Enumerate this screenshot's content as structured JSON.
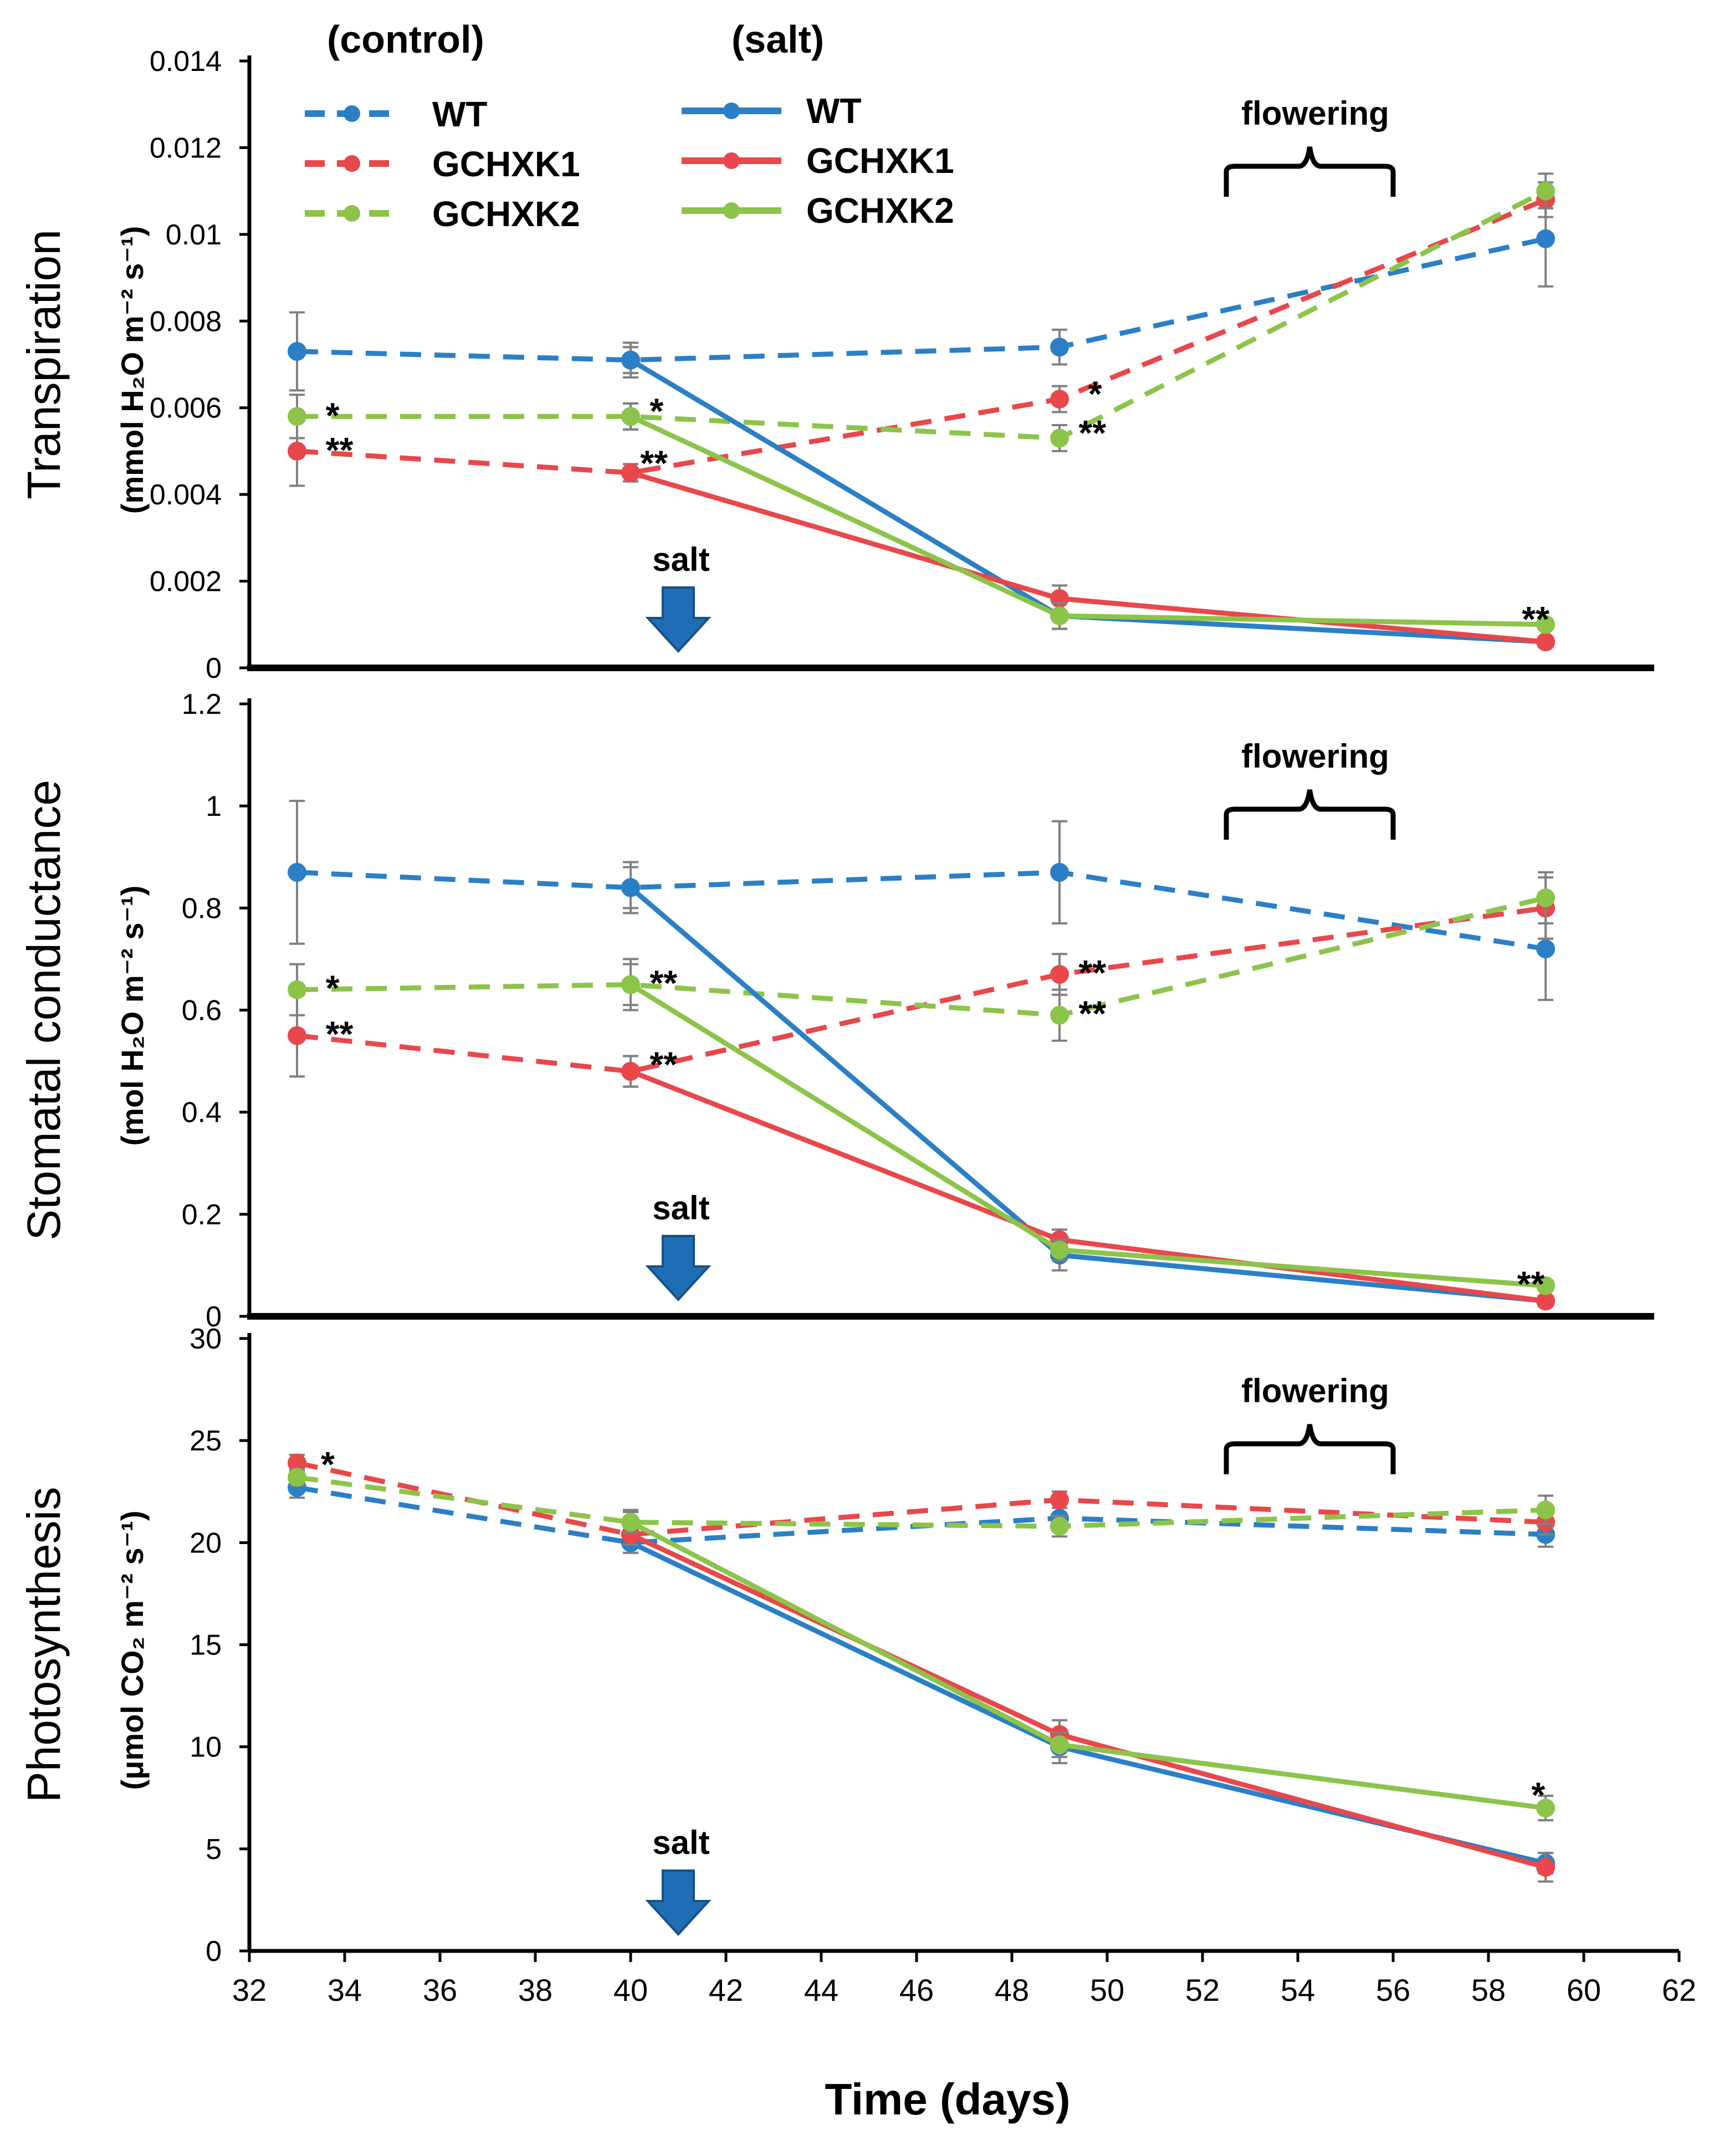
{
  "x_axis": {
    "label": "Time (days)",
    "min": 32,
    "max": 62,
    "ticks": [
      "32",
      "34",
      "36",
      "38",
      "40",
      "42",
      "44",
      "46",
      "48",
      "50",
      "52",
      "54",
      "56",
      "58",
      "60",
      "62"
    ]
  },
  "colors": {
    "WT": "#2b7fc6",
    "GCHXK1": "#e8474b",
    "GCHXK2": "#8cc44a",
    "arrow": "#1f6db4",
    "error": "#808080"
  },
  "legend": {
    "control_heading": "(control)",
    "salt_heading": "(salt)",
    "control": [
      "WT",
      "GCHXK1",
      "GCHXK2"
    ],
    "salt": [
      "WT",
      "GCHXK1",
      "GCHXK2"
    ]
  },
  "annotations": {
    "salt_marker": "salt",
    "flowering": "flowering",
    "salt_day": 41,
    "flowering_days": [
      52.5,
      56
    ]
  },
  "chart_data": [
    {
      "type": "line",
      "title": "Transpiration",
      "ylabel": "Transpiration",
      "ylabel_units": "(mmol H₂O m⁻² s⁻¹)",
      "ylim": [
        0,
        0.014
      ],
      "yticks": [
        "0",
        "0.002",
        "0.004",
        "0.006",
        "0.008",
        "0.01",
        "0.012",
        "0.014"
      ],
      "series": [
        {
          "name": "WT",
          "group": "control",
          "x": [
            33,
            40,
            49,
            59.2
          ],
          "values": [
            0.0073,
            0.0071,
            0.0074,
            0.0099
          ],
          "err": [
            0.0009,
            0.0004,
            0.0004,
            0.0011
          ]
        },
        {
          "name": "GCHXK1",
          "group": "control",
          "x": [
            33,
            40,
            49,
            59.2
          ],
          "values": [
            0.005,
            0.0045,
            0.0062,
            0.0108
          ],
          "err": [
            0.0008,
            0.0002,
            0.0003,
            0.0004
          ]
        },
        {
          "name": "GCHXK2",
          "group": "control",
          "x": [
            33,
            40,
            49,
            59.2
          ],
          "values": [
            0.0058,
            0.0058,
            0.0053,
            0.011
          ],
          "err": [
            0.0005,
            0.0003,
            0.0003,
            0.0004
          ]
        },
        {
          "name": "WT",
          "group": "salt",
          "x": [
            40,
            49,
            59.2
          ],
          "values": [
            0.0071,
            0.0012,
            0.0006
          ],
          "err": [
            0.0003,
            0.0003,
            0.0001
          ]
        },
        {
          "name": "GCHXK1",
          "group": "salt",
          "x": [
            40,
            49,
            59.2
          ],
          "values": [
            0.0045,
            0.0016,
            0.0006
          ],
          "err": [
            0.0002,
            0.0003,
            0.0001
          ]
        },
        {
          "name": "GCHXK2",
          "group": "salt",
          "x": [
            40,
            49,
            59.2
          ],
          "values": [
            0.0058,
            0.0012,
            0.001
          ],
          "err": [
            0.0003,
            0.0003,
            0.0001
          ]
        }
      ],
      "significance": [
        {
          "label": "*",
          "x": 33.6,
          "y": 0.0059
        },
        {
          "label": "**",
          "x": 33.6,
          "y": 0.0051
        },
        {
          "label": "*",
          "x": 40.4,
          "y": 0.006
        },
        {
          "label": "**",
          "x": 40.2,
          "y": 0.0048
        },
        {
          "label": "*",
          "x": 49.6,
          "y": 0.0064
        },
        {
          "label": "**",
          "x": 49.4,
          "y": 0.0055
        },
        {
          "label": "**",
          "x": 58.7,
          "y": 0.0012
        }
      ]
    },
    {
      "type": "line",
      "title": "Stomatal conductance",
      "ylabel": "Stomatal conductance",
      "ylabel_units": "(mol H₂O m⁻² s⁻¹)",
      "ylim": [
        0,
        1.2
      ],
      "yticks": [
        "0",
        "0.2",
        "0.4",
        "0.6",
        "0.8",
        "1",
        "1.2"
      ],
      "series": [
        {
          "name": "WT",
          "group": "control",
          "x": [
            33,
            40,
            49,
            59.2
          ],
          "values": [
            0.87,
            0.84,
            0.87,
            0.72
          ],
          "err": [
            0.14,
            0.05,
            0.1,
            0.1
          ]
        },
        {
          "name": "GCHXK1",
          "group": "control",
          "x": [
            33,
            40,
            49,
            59.2
          ],
          "values": [
            0.55,
            0.48,
            0.67,
            0.8
          ],
          "err": [
            0.08,
            0.03,
            0.04,
            0.06
          ]
        },
        {
          "name": "GCHXK2",
          "group": "control",
          "x": [
            33,
            40,
            49,
            59.2
          ],
          "values": [
            0.64,
            0.65,
            0.59,
            0.82
          ],
          "err": [
            0.05,
            0.05,
            0.05,
            0.05
          ]
        },
        {
          "name": "WT",
          "group": "salt",
          "x": [
            40,
            49,
            59.2
          ],
          "values": [
            0.84,
            0.12,
            0.03
          ],
          "err": [
            0.04,
            0.03,
            0.01
          ]
        },
        {
          "name": "GCHXK1",
          "group": "salt",
          "x": [
            40,
            49,
            59.2
          ],
          "values": [
            0.48,
            0.15,
            0.03
          ],
          "err": [
            0.03,
            0.02,
            0.01
          ]
        },
        {
          "name": "GCHXK2",
          "group": "salt",
          "x": [
            40,
            49,
            59.2
          ],
          "values": [
            0.65,
            0.13,
            0.06
          ],
          "err": [
            0.04,
            0.02,
            0.01
          ]
        }
      ],
      "significance": [
        {
          "label": "*",
          "x": 33.6,
          "y": 0.65
        },
        {
          "label": "**",
          "x": 33.6,
          "y": 0.56
        },
        {
          "label": "**",
          "x": 40.4,
          "y": 0.66
        },
        {
          "label": "**",
          "x": 40.4,
          "y": 0.5
        },
        {
          "label": "**",
          "x": 49.4,
          "y": 0.68
        },
        {
          "label": "**",
          "x": 49.4,
          "y": 0.6
        },
        {
          "label": "**",
          "x": 58.6,
          "y": 0.07
        }
      ]
    },
    {
      "type": "line",
      "title": "Photosynthesis",
      "ylabel": "Photosynthesis",
      "ylabel_units": "(μmol CO₂ m⁻² s⁻¹)",
      "ylim": [
        0,
        30
      ],
      "yticks": [
        "0",
        "5",
        "10",
        "15",
        "20",
        "25",
        "30"
      ],
      "series": [
        {
          "name": "WT",
          "group": "control",
          "x": [
            33,
            40,
            49,
            59.2
          ],
          "values": [
            22.7,
            20.0,
            21.2,
            20.4
          ],
          "err": [
            0.5,
            0.5,
            0.5,
            0.6
          ]
        },
        {
          "name": "GCHXK1",
          "group": "control",
          "x": [
            33,
            40,
            49,
            59.2
          ],
          "values": [
            23.9,
            20.4,
            22.1,
            21.0
          ],
          "err": [
            0.4,
            0.5,
            0.4,
            0.6
          ]
        },
        {
          "name": "GCHXK2",
          "group": "control",
          "x": [
            33,
            40,
            49,
            59.2
          ],
          "values": [
            23.2,
            21.0,
            20.8,
            21.6
          ],
          "err": [
            0.4,
            0.6,
            0.5,
            0.7
          ]
        },
        {
          "name": "WT",
          "group": "salt",
          "x": [
            40,
            49,
            59.2
          ],
          "values": [
            20.0,
            10.0,
            4.3
          ],
          "err": [
            0.5,
            0.8,
            0.5
          ]
        },
        {
          "name": "GCHXK1",
          "group": "salt",
          "x": [
            40,
            49,
            59.2
          ],
          "values": [
            20.4,
            10.6,
            4.1
          ],
          "err": [
            0.5,
            0.7,
            0.7
          ]
        },
        {
          "name": "GCHXK2",
          "group": "salt",
          "x": [
            40,
            49,
            59.2
          ],
          "values": [
            21.0,
            10.1,
            7.0
          ],
          "err": [
            0.5,
            0.6,
            0.6
          ]
        }
      ],
      "significance": [
        {
          "label": "*",
          "x": 33.5,
          "y": 24.0
        },
        {
          "label": "*",
          "x": 58.9,
          "y": 7.8
        }
      ]
    }
  ]
}
